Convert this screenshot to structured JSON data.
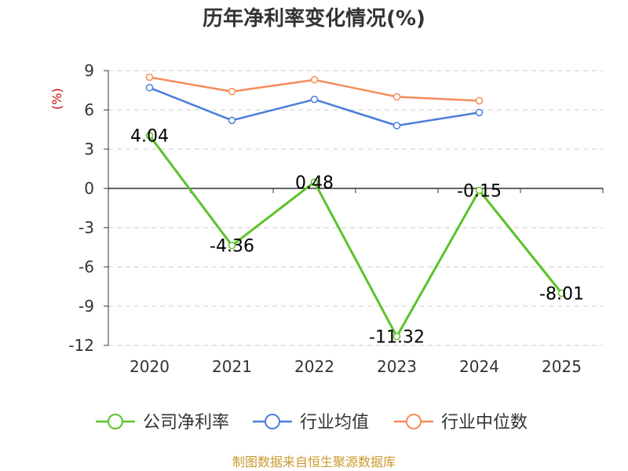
{
  "chart_data": {
    "type": "line",
    "title": "历年净利率变化情况(%)",
    "ylabel": "(%)",
    "xlabel": "",
    "categories": [
      "2020",
      "2021",
      "2022",
      "2023",
      "2024",
      "2025"
    ],
    "ylim": [
      -12,
      9
    ],
    "yticks": [
      9,
      6,
      3,
      0,
      -3,
      -6,
      -9,
      -12
    ],
    "grid": true,
    "legend": "bottom",
    "series": [
      {
        "name": "公司净利率",
        "color": "#5cc22a",
        "values": [
          4.04,
          -4.36,
          0.48,
          -11.32,
          -0.15,
          -8.01
        ],
        "labels": [
          "4.04",
          "-4.36",
          "0.48",
          "-11.32",
          "-0.15",
          "-8.01"
        ]
      },
      {
        "name": "行业均值",
        "color": "#4a7fdc",
        "values": [
          7.7,
          5.2,
          6.8,
          4.8,
          5.8,
          null
        ]
      },
      {
        "name": "行业中位数",
        "color": "#f58c5a",
        "values": [
          8.5,
          7.4,
          8.3,
          7.0,
          6.7,
          null
        ]
      }
    ]
  },
  "source": "制图数据来自恒生聚源数据库"
}
